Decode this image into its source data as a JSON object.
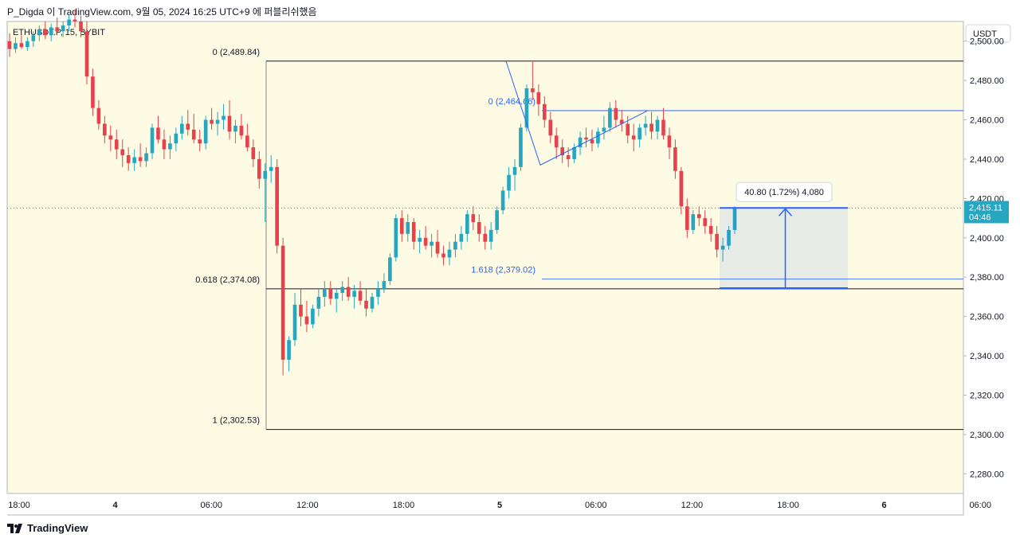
{
  "header": {
    "title": "P_Digda 이 TradingView.com, 9월 05, 2024 16:25 UTC+9 에 퍼블리쉬했음"
  },
  "symbol_label": "ETHUSDT.P, 15, BYBIT",
  "currency": "USDT",
  "footer": {
    "brand": "TradingView"
  },
  "colors": {
    "up": "#26a6c0",
    "down": "#e5424d",
    "bg": "#fdfbe3",
    "blue": "#2962ff",
    "axis_bg": "#ffffff"
  },
  "chart_data": {
    "type": "candlestick",
    "ylim": [
      2270,
      2510
    ],
    "y_ticks": [
      {
        "value": 2500,
        "label": "2,500.00"
      },
      {
        "value": 2480,
        "label": "2,480.00"
      },
      {
        "value": 2460,
        "label": "2,460.00"
      },
      {
        "value": 2440,
        "label": "2,440.00"
      },
      {
        "value": 2420,
        "label": "2,420.00"
      },
      {
        "value": 2400,
        "label": "2,400.00"
      },
      {
        "value": 2380,
        "label": "2,380.00"
      },
      {
        "value": 2360,
        "label": "2,360.00"
      },
      {
        "value": 2340,
        "label": "2,340.00"
      },
      {
        "value": 2320,
        "label": "2,320.00"
      },
      {
        "value": 2300,
        "label": "2,300.00"
      },
      {
        "value": 2280,
        "label": "2,280.00"
      }
    ],
    "x_range_hours": [
      0,
      62
    ],
    "x_ticks": [
      {
        "hour": 0,
        "label": "18:00",
        "bold": false
      },
      {
        "hour": 6,
        "label": "4",
        "bold": true
      },
      {
        "hour": 12,
        "label": "06:00",
        "bold": false
      },
      {
        "hour": 18,
        "label": "12:00",
        "bold": false
      },
      {
        "hour": 24,
        "label": "18:00",
        "bold": false
      },
      {
        "hour": 30,
        "label": "5",
        "bold": true
      },
      {
        "hour": 36,
        "label": "06:00",
        "bold": false
      },
      {
        "hour": 42,
        "label": "12:00",
        "bold": false
      },
      {
        "hour": 48,
        "label": "18:00",
        "bold": false
      },
      {
        "hour": 54,
        "label": "6",
        "bold": true
      },
      {
        "hour": 60,
        "label": "06:00",
        "bold": false
      }
    ],
    "current_price": {
      "value": 2415.11,
      "label": "2,415.11",
      "countdown": "04:46"
    },
    "fib_levels": [
      {
        "label": "0 (2,489.84)",
        "value": 2489.84
      },
      {
        "label": "0.618 (2,374.08)",
        "value": 2374.08
      },
      {
        "label": "1 (2,302.53)",
        "value": 2302.53
      }
    ],
    "ext_levels": [
      {
        "label": "0 (2,464.66)",
        "value": 2464.66
      },
      {
        "label": "1.618 (2,379.02)",
        "value": 2379.02
      }
    ],
    "measure": {
      "label": "40.80 (1.72%) 4,080",
      "from": 2374.4,
      "to": 2415.2
    },
    "candles": [
      [
        2500,
        2504,
        2492,
        2496
      ],
      [
        2496,
        2502,
        2494,
        2499
      ],
      [
        2499,
        2503,
        2496,
        2497
      ],
      [
        2497,
        2502,
        2495,
        2500
      ],
      [
        2500,
        2505,
        2497,
        2503
      ],
      [
        2503,
        2508,
        2500,
        2506
      ],
      [
        2506,
        2510,
        2501,
        2503
      ],
      [
        2503,
        2509,
        2500,
        2507
      ],
      [
        2507,
        2512,
        2503,
        2505
      ],
      [
        2505,
        2510,
        2502,
        2508
      ],
      [
        2508,
        2514,
        2505,
        2511
      ],
      [
        2511,
        2516,
        2507,
        2510
      ],
      [
        2510,
        2513,
        2502,
        2505
      ],
      [
        2505,
        2510,
        2478,
        2482
      ],
      [
        2482,
        2486,
        2462,
        2466
      ],
      [
        2466,
        2470,
        2455,
        2458
      ],
      [
        2458,
        2462,
        2448,
        2452
      ],
      [
        2452,
        2457,
        2444,
        2450
      ],
      [
        2450,
        2455,
        2440,
        2445
      ],
      [
        2445,
        2450,
        2436,
        2442
      ],
      [
        2442,
        2446,
        2434,
        2438
      ],
      [
        2438,
        2445,
        2434,
        2441
      ],
      [
        2441,
        2448,
        2436,
        2439
      ],
      [
        2439,
        2446,
        2436,
        2443
      ],
      [
        2443,
        2458,
        2440,
        2456
      ],
      [
        2456,
        2462,
        2448,
        2450
      ],
      [
        2450,
        2455,
        2440,
        2445
      ],
      [
        2445,
        2452,
        2440,
        2448
      ],
      [
        2448,
        2456,
        2444,
        2453
      ],
      [
        2453,
        2462,
        2450,
        2458
      ],
      [
        2458,
        2465,
        2452,
        2455
      ],
      [
        2455,
        2463,
        2448,
        2450
      ],
      [
        2450,
        2455,
        2444,
        2448
      ],
      [
        2448,
        2462,
        2445,
        2460
      ],
      [
        2460,
        2466,
        2455,
        2458
      ],
      [
        2458,
        2464,
        2452,
        2460
      ],
      [
        2460,
        2468,
        2455,
        2462
      ],
      [
        2462,
        2470,
        2450,
        2454
      ],
      [
        2454,
        2460,
        2448,
        2457
      ],
      [
        2457,
        2463,
        2450,
        2452
      ],
      [
        2452,
        2458,
        2444,
        2446
      ],
      [
        2446,
        2450,
        2436,
        2440
      ],
      [
        2440,
        2444,
        2425,
        2430
      ],
      [
        2430,
        2438,
        2408,
        2434
      ],
      [
        2434,
        2442,
        2428,
        2436
      ],
      [
        2436,
        2440,
        2392,
        2396
      ],
      [
        2396,
        2400,
        2330,
        2338
      ],
      [
        2338,
        2350,
        2332,
        2348
      ],
      [
        2348,
        2372,
        2345,
        2366
      ],
      [
        2366,
        2374,
        2355,
        2360
      ],
      [
        2360,
        2368,
        2352,
        2356
      ],
      [
        2356,
        2366,
        2354,
        2364
      ],
      [
        2364,
        2374,
        2360,
        2370
      ],
      [
        2370,
        2378,
        2365,
        2374
      ],
      [
        2374,
        2378,
        2366,
        2369
      ],
      [
        2369,
        2374,
        2362,
        2372
      ],
      [
        2372,
        2378,
        2368,
        2375
      ],
      [
        2375,
        2380,
        2368,
        2370
      ],
      [
        2370,
        2376,
        2364,
        2373
      ],
      [
        2373,
        2378,
        2366,
        2368
      ],
      [
        2368,
        2374,
        2360,
        2364
      ],
      [
        2364,
        2372,
        2362,
        2370
      ],
      [
        2370,
        2378,
        2366,
        2374
      ],
      [
        2374,
        2382,
        2372,
        2378
      ],
      [
        2378,
        2392,
        2376,
        2390
      ],
      [
        2390,
        2412,
        2388,
        2410
      ],
      [
        2410,
        2414,
        2398,
        2402
      ],
      [
        2402,
        2412,
        2398,
        2408
      ],
      [
        2408,
        2410,
        2394,
        2398
      ],
      [
        2398,
        2404,
        2392,
        2400
      ],
      [
        2400,
        2406,
        2394,
        2396
      ],
      [
        2396,
        2402,
        2390,
        2398
      ],
      [
        2398,
        2404,
        2390,
        2392
      ],
      [
        2392,
        2396,
        2386,
        2390
      ],
      [
        2390,
        2398,
        2386,
        2394
      ],
      [
        2394,
        2402,
        2390,
        2398
      ],
      [
        2398,
        2406,
        2394,
        2402
      ],
      [
        2402,
        2414,
        2398,
        2412
      ],
      [
        2412,
        2416,
        2404,
        2408
      ],
      [
        2408,
        2412,
        2398,
        2402
      ],
      [
        2402,
        2406,
        2394,
        2398
      ],
      [
        2398,
        2408,
        2394,
        2404
      ],
      [
        2404,
        2416,
        2402,
        2414
      ],
      [
        2414,
        2426,
        2412,
        2424
      ],
      [
        2424,
        2436,
        2420,
        2432
      ],
      [
        2432,
        2440,
        2424,
        2436
      ],
      [
        2436,
        2458,
        2434,
        2456
      ],
      [
        2456,
        2478,
        2454,
        2476
      ],
      [
        2476,
        2490,
        2470,
        2474
      ],
      [
        2474,
        2478,
        2462,
        2468
      ],
      [
        2468,
        2472,
        2456,
        2460
      ],
      [
        2460,
        2464,
        2448,
        2452
      ],
      [
        2452,
        2456,
        2440,
        2446
      ],
      [
        2446,
        2450,
        2438,
        2442
      ],
      [
        2442,
        2446,
        2436,
        2440
      ],
      [
        2440,
        2448,
        2438,
        2446
      ],
      [
        2446,
        2454,
        2442,
        2451
      ],
      [
        2451,
        2456,
        2446,
        2450
      ],
      [
        2450,
        2455,
        2444,
        2448
      ],
      [
        2448,
        2456,
        2446,
        2454
      ],
      [
        2454,
        2462,
        2450,
        2456
      ],
      [
        2456,
        2469,
        2454,
        2466
      ],
      [
        2466,
        2470,
        2456,
        2460
      ],
      [
        2460,
        2465,
        2454,
        2458
      ],
      [
        2458,
        2462,
        2448,
        2452
      ],
      [
        2452,
        2458,
        2444,
        2450
      ],
      [
        2450,
        2458,
        2446,
        2456
      ],
      [
        2456,
        2462,
        2452,
        2458
      ],
      [
        2458,
        2464,
        2450,
        2454
      ],
      [
        2454,
        2462,
        2450,
        2460
      ],
      [
        2460,
        2466,
        2450,
        2452
      ],
      [
        2452,
        2456,
        2440,
        2446
      ],
      [
        2446,
        2450,
        2430,
        2434
      ],
      [
        2434,
        2436,
        2412,
        2416
      ],
      [
        2416,
        2420,
        2400,
        2404
      ],
      [
        2404,
        2414,
        2402,
        2412
      ],
      [
        2412,
        2416,
        2406,
        2410
      ],
      [
        2410,
        2414,
        2402,
        2406
      ],
      [
        2406,
        2410,
        2398,
        2402
      ],
      [
        2402,
        2406,
        2390,
        2394
      ],
      [
        2394,
        2400,
        2388,
        2396
      ],
      [
        2396,
        2406,
        2394,
        2404
      ],
      [
        2404,
        2416,
        2402,
        2415
      ]
    ]
  }
}
